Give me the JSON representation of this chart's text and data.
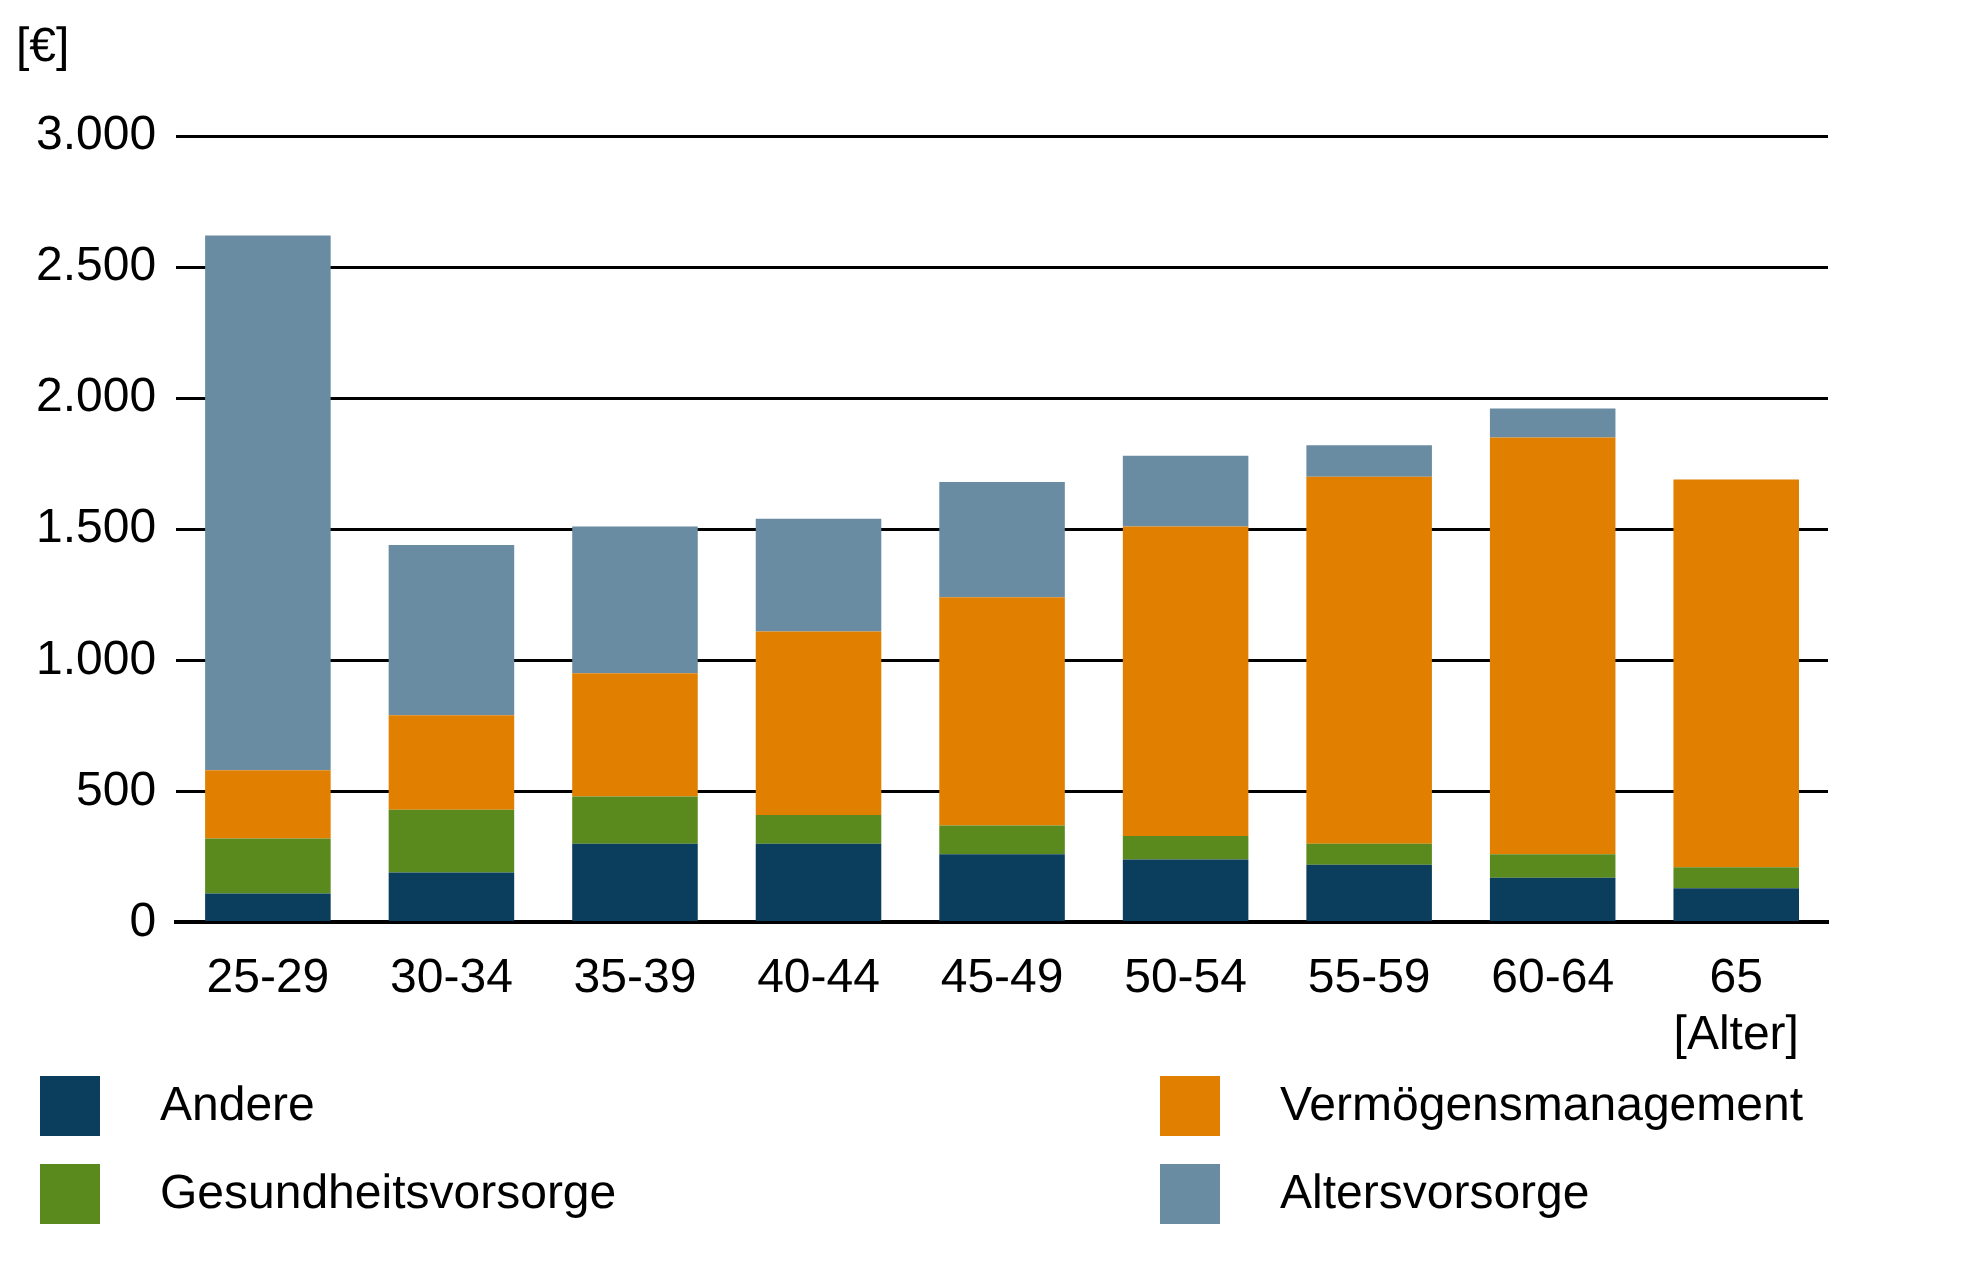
{
  "chart_data": {
    "type": "bar",
    "stacked": true,
    "ylabel": "[€]",
    "xlabel": "[Alter]",
    "categories": [
      "25-29",
      "30-34",
      "35-39",
      "40-44",
      "45-49",
      "50-54",
      "55-59",
      "60-64",
      "65"
    ],
    "series": [
      {
        "name": "Andere",
        "color": "#0b3d5c",
        "values": [
          110,
          190,
          300,
          300,
          260,
          240,
          220,
          170,
          130
        ]
      },
      {
        "name": "Gesundheitsvorsorge",
        "color": "#5a8a1e",
        "values": [
          210,
          240,
          180,
          110,
          110,
          90,
          80,
          90,
          80
        ]
      },
      {
        "name": "Vermögensmanagement",
        "color": "#e07f00",
        "values": [
          260,
          360,
          470,
          700,
          870,
          1180,
          1400,
          1590,
          1480
        ]
      },
      {
        "name": "Altersvorsorge",
        "color": "#6a8ca3",
        "values": [
          2040,
          650,
          560,
          430,
          440,
          270,
          120,
          110,
          0
        ]
      }
    ],
    "ylim": [
      0,
      3000
    ],
    "yticks": [
      0,
      500,
      {
        "value": 1000,
        "label": "1.000"
      },
      {
        "value": 1500,
        "label": "1.500"
      },
      {
        "value": 2000,
        "label": "2.000"
      },
      {
        "value": 2500,
        "label": "2.500"
      },
      {
        "value": 3000,
        "label": "3.000"
      }
    ],
    "grid": "y",
    "legend": "bottom"
  }
}
